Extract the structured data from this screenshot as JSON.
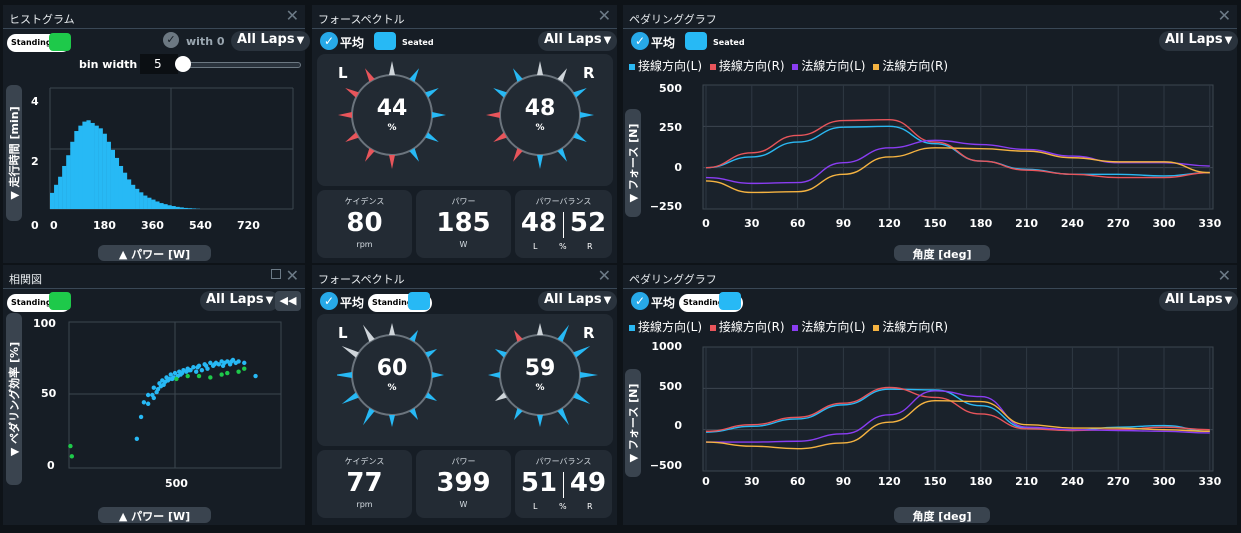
{
  "histogram": {
    "title": "ヒストグラム",
    "badge": "Standing",
    "with0_label": "with 0",
    "laps": "All Laps",
    "bin_label": "bin width :",
    "bin_value": "5",
    "y_label": "▼ 走行時間 [min]",
    "x_label": "▲ パワー [W]",
    "y_ticks": [
      "4",
      "2",
      "0"
    ],
    "x_ticks": [
      "0",
      "180",
      "360",
      "540",
      "720"
    ],
    "color": "#27b9f5"
  },
  "correlation": {
    "title": "相関図",
    "badge": "Standing",
    "laps": "All Laps",
    "y_label": "▼ ペダリング効率 [%]",
    "x_label": "▲ パワー [W]",
    "y_ticks": [
      "100",
      "50",
      "0"
    ],
    "x_ticks": [
      "500"
    ]
  },
  "force_top": {
    "title": "フォースペクトル",
    "avg": "平均",
    "badge": "Seated",
    "laps": "All Laps",
    "left": {
      "side": "L",
      "value": "44",
      "unit": "%"
    },
    "right": {
      "side": "R",
      "value": "48",
      "unit": "%"
    },
    "cadence": {
      "title": "ケイデンス",
      "value": "80",
      "unit": "rpm"
    },
    "power": {
      "title": "パワー",
      "value": "185",
      "unit": "W"
    },
    "balance": {
      "title": "パワーバランス",
      "left": "48",
      "right": "52",
      "l": "L",
      "pct": "%",
      "r": "R"
    }
  },
  "force_bottom": {
    "title": "フォースペクトル",
    "avg": "平均",
    "badge": "Standing",
    "laps": "All Laps",
    "left": {
      "side": "L",
      "value": "60",
      "unit": "%"
    },
    "right": {
      "side": "R",
      "value": "59",
      "unit": "%"
    },
    "cadence": {
      "title": "ケイデンス",
      "value": "77",
      "unit": "rpm"
    },
    "power": {
      "title": "パワー",
      "value": "399",
      "unit": "W"
    },
    "balance": {
      "title": "パワーバランス",
      "left": "51",
      "right": "49",
      "l": "L",
      "pct": "%",
      "r": "R"
    }
  },
  "pedaling_top": {
    "title": "ペダリンググラフ",
    "avg": "平均",
    "badge": "Seated",
    "laps": "All Laps",
    "legend": [
      "接線方向(L)",
      "接線方向(R)",
      "法線方向(L)",
      "法線方向(R)"
    ],
    "y_label": "▼ フォース [N]",
    "x_label": "角度 [deg]",
    "y_ticks": [
      "500",
      "250",
      "0",
      "−250"
    ],
    "x_ticks": [
      "0",
      "30",
      "60",
      "90",
      "120",
      "150",
      "180",
      "210",
      "240",
      "270",
      "300",
      "330"
    ]
  },
  "pedaling_bottom": {
    "title": "ペダリンググラフ",
    "avg": "平均",
    "badge": "Standing",
    "laps": "All Laps",
    "legend": [
      "接線方向(L)",
      "接線方向(R)",
      "法線方向(L)",
      "法線方向(R)"
    ],
    "y_label": "▼ フォース [N]",
    "x_label": "角度 [deg]",
    "y_ticks": [
      "1000",
      "500",
      "0",
      "−500"
    ],
    "x_ticks": [
      "0",
      "30",
      "60",
      "90",
      "120",
      "150",
      "180",
      "210",
      "240",
      "270",
      "300",
      "330"
    ]
  },
  "colors": {
    "tangential_L": "#2bb8f2",
    "tangential_R": "#e8555b",
    "normal_L": "#8a3df2",
    "normal_R": "#f5b341",
    "accent": "#27a9e8",
    "standing_rider": "#1ec94a",
    "seated_rider": "#27b9f5"
  },
  "chart_data": [
    {
      "type": "bar",
      "title": "ヒストグラム",
      "xlabel": "▲ パワー [W]",
      "ylabel": "▼ 走行時間 [min]",
      "xlim": [
        0,
        900
      ],
      "ylim": [
        0,
        4.5
      ],
      "x": [
        0,
        15,
        30,
        45,
        60,
        75,
        90,
        105,
        120,
        135,
        150,
        165,
        180,
        195,
        210,
        225,
        240,
        255,
        270,
        285,
        300,
        315,
        330,
        345,
        360,
        375,
        390,
        405,
        420,
        435,
        450,
        465,
        480,
        495,
        510,
        525,
        540
      ],
      "values": [
        0.6,
        0.9,
        1.2,
        1.6,
        2.0,
        2.5,
        2.9,
        3.1,
        3.25,
        3.3,
        3.2,
        3.1,
        3.0,
        2.8,
        2.5,
        2.2,
        1.9,
        1.6,
        1.35,
        1.1,
        0.9,
        0.75,
        0.62,
        0.5,
        0.42,
        0.35,
        0.28,
        0.22,
        0.18,
        0.14,
        0.11,
        0.08,
        0.06,
        0.04,
        0.03,
        0.02,
        0.01
      ]
    },
    {
      "type": "scatter",
      "title": "相関図",
      "xlabel": "▲ パワー [W]",
      "ylabel": "▼ ペダリング効率 [%]",
      "xlim": [
        0,
        750
      ],
      "ylim": [
        0,
        100
      ],
      "series": [
        {
          "name": "Standing",
          "points": [
            [
              240,
              20
            ],
            [
              255,
              35
            ],
            [
              265,
              45
            ],
            [
              280,
              50
            ],
            [
              300,
              55
            ],
            [
              320,
              58
            ],
            [
              330,
              60
            ],
            [
              345,
              62
            ],
            [
              360,
              64
            ],
            [
              375,
              65
            ],
            [
              390,
              66
            ],
            [
              405,
              67
            ],
            [
              420,
              68
            ],
            [
              440,
              69
            ],
            [
              460,
              70
            ],
            [
              480,
              71
            ],
            [
              500,
              72
            ],
            [
              520,
              72
            ],
            [
              540,
              73
            ],
            [
              560,
              73
            ],
            [
              580,
              74
            ],
            [
              600,
              73
            ],
            [
              620,
              72
            ],
            [
              300,
              48
            ],
            [
              310,
              52
            ],
            [
              325,
              56
            ],
            [
              340,
              59
            ],
            [
              355,
              61
            ],
            [
              370,
              62
            ],
            [
              385,
              63
            ],
            [
              400,
              65
            ],
            [
              415,
              66
            ],
            [
              430,
              67
            ],
            [
              450,
              66
            ],
            [
              470,
              67
            ],
            [
              490,
              68
            ],
            [
              510,
              70
            ],
            [
              530,
              71
            ],
            [
              550,
              72
            ],
            [
              570,
              71
            ],
            [
              590,
              72
            ],
            [
              280,
              44
            ],
            [
              295,
              50
            ],
            [
              315,
              54
            ],
            [
              335,
              57
            ],
            [
              350,
              60
            ],
            [
              365,
              61
            ],
            [
              395,
              64
            ],
            [
              425,
              67
            ],
            [
              455,
              69
            ],
            [
              485,
              70
            ],
            [
              515,
              71
            ],
            [
              545,
              70
            ],
            [
              575,
              73
            ],
            [
              660,
              63
            ]
          ]
        },
        {
          "name": "Seated",
          "points": [
            [
              5,
              15
            ],
            [
              10,
              8
            ],
            [
              380,
              61
            ],
            [
              420,
              63
            ],
            [
              460,
              63
            ],
            [
              500,
              62
            ],
            [
              540,
              64
            ],
            [
              560,
              65
            ],
            [
              600,
              66
            ],
            [
              620,
              68
            ]
          ]
        }
      ]
    },
    {
      "type": "line",
      "title": "ペダリンググラフ (Seated)",
      "xlabel": "角度 [deg]",
      "ylabel": "▼ フォース [N]",
      "xlim": [
        0,
        335
      ],
      "ylim": [
        -250,
        500
      ],
      "x": [
        0,
        30,
        60,
        90,
        120,
        150,
        180,
        210,
        240,
        270,
        300,
        330
      ],
      "series": [
        {
          "name": "接線方向(L)",
          "values": [
            0,
            65,
            155,
            245,
            250,
            145,
            40,
            -10,
            -40,
            -40,
            -50,
            -30
          ]
        },
        {
          "name": "接線方向(R)",
          "values": [
            0,
            90,
            195,
            285,
            290,
            155,
            40,
            -15,
            -40,
            -60,
            -60,
            -30
          ]
        },
        {
          "name": "法線方向(L)",
          "values": [
            -60,
            -95,
            -90,
            30,
            120,
            165,
            140,
            110,
            70,
            30,
            30,
            10
          ]
        },
        {
          "name": "法線方向(R)",
          "values": [
            -80,
            -150,
            -145,
            -40,
            65,
            120,
            115,
            100,
            60,
            35,
            35,
            -30
          ]
        }
      ]
    },
    {
      "type": "line",
      "title": "ペダリンググラフ (Standing)",
      "xlabel": "角度 [deg]",
      "ylabel": "▼ フォース [N]",
      "xlim": [
        0,
        335
      ],
      "ylim": [
        -500,
        1000
      ],
      "x": [
        0,
        30,
        60,
        90,
        120,
        150,
        180,
        210,
        240,
        270,
        300,
        330
      ],
      "series": [
        {
          "name": "接線方向(L)",
          "values": [
            -30,
            40,
            130,
            300,
            490,
            480,
            290,
            20,
            -10,
            30,
            50,
            -20
          ]
        },
        {
          "name": "接線方向(R)",
          "values": [
            -20,
            60,
            150,
            320,
            510,
            390,
            190,
            10,
            -10,
            0,
            30,
            0
          ]
        },
        {
          "name": "法線方向(L)",
          "values": [
            -150,
            -150,
            -140,
            -50,
            180,
            470,
            400,
            30,
            0,
            -10,
            -20,
            -40
          ]
        },
        {
          "name": "法線方向(R)",
          "values": [
            -150,
            -200,
            -230,
            -160,
            90,
            350,
            340,
            60,
            20,
            20,
            0,
            -20
          ]
        }
      ]
    }
  ]
}
